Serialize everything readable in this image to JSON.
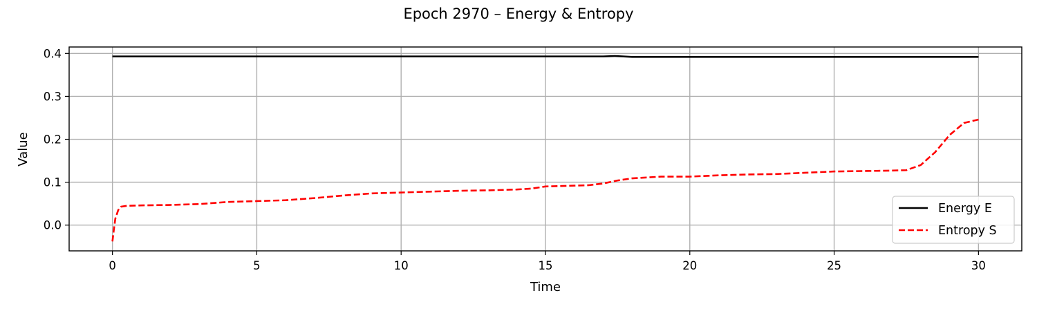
{
  "chart_data": {
    "type": "line",
    "title": "Epoch 2970 – Energy & Entropy",
    "xlabel": "Time",
    "ylabel": "Value",
    "xlim": [
      -1.5,
      31.5
    ],
    "ylim": [
      -0.06,
      0.415
    ],
    "xticks": [
      0,
      5,
      10,
      15,
      20,
      25,
      30
    ],
    "xtick_labels": [
      "0",
      "5",
      "10",
      "15",
      "20",
      "25",
      "30"
    ],
    "yticks": [
      0.0,
      0.1,
      0.2,
      0.3,
      0.4
    ],
    "ytick_labels": [
      "0.0",
      "0.1",
      "0.2",
      "0.3",
      "0.4"
    ],
    "grid": true,
    "legend_position": "lower-right",
    "series": [
      {
        "name": "Energy E",
        "color": "#000000",
        "style": "solid",
        "x": [
          0,
          5,
          10,
          15,
          17,
          17.4,
          18,
          20,
          25,
          30
        ],
        "y": [
          0.393,
          0.393,
          0.393,
          0.393,
          0.393,
          0.394,
          0.392,
          0.392,
          0.392,
          0.392
        ]
      },
      {
        "name": "Entropy S",
        "color": "#ff0000",
        "style": "dashed",
        "x": [
          0,
          0.05,
          0.1,
          0.2,
          0.3,
          0.5,
          1,
          2,
          3,
          4,
          5,
          6,
          7,
          8,
          9,
          10,
          11,
          12,
          13,
          14,
          14.5,
          15,
          16,
          16.5,
          17,
          17.5,
          18,
          19,
          20,
          21,
          22,
          23,
          24,
          25,
          26,
          27,
          27.5,
          28,
          28.5,
          29,
          29.5,
          30
        ],
        "y": [
          -0.038,
          -0.01,
          0.015,
          0.035,
          0.043,
          0.045,
          0.046,
          0.047,
          0.049,
          0.054,
          0.056,
          0.058,
          0.063,
          0.069,
          0.074,
          0.076,
          0.078,
          0.08,
          0.081,
          0.083,
          0.085,
          0.09,
          0.092,
          0.093,
          0.097,
          0.104,
          0.109,
          0.113,
          0.113,
          0.116,
          0.118,
          0.119,
          0.122,
          0.125,
          0.126,
          0.127,
          0.128,
          0.14,
          0.17,
          0.21,
          0.238,
          0.246
        ]
      }
    ]
  }
}
